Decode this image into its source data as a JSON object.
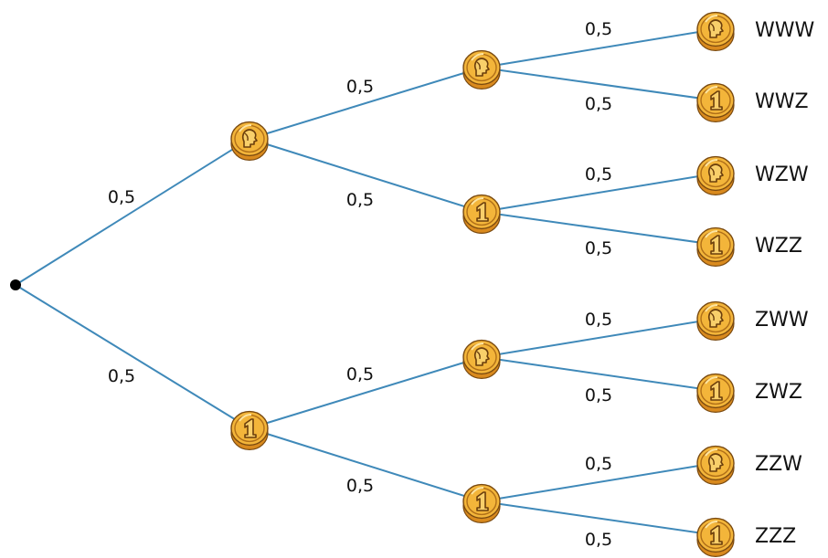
{
  "tree": {
    "levels": [
      {
        "branches": [
          {
            "coin": "heads-W",
            "prob": "0,5"
          },
          {
            "coin": "tails-Z",
            "prob": "0,5"
          }
        ]
      },
      {
        "branches": [
          {
            "coin": "heads-W",
            "prob": "0,5"
          },
          {
            "coin": "tails-Z",
            "prob": "0,5"
          },
          {
            "coin": "heads-W",
            "prob": "0,5"
          },
          {
            "coin": "tails-Z",
            "prob": "0,5"
          }
        ]
      },
      {
        "branches": [
          {
            "coin": "heads-W",
            "prob": "0,5",
            "outcome": "WWW"
          },
          {
            "coin": "tails-Z",
            "prob": "0,5",
            "outcome": "WWZ"
          },
          {
            "coin": "heads-W",
            "prob": "0,5",
            "outcome": "WZW"
          },
          {
            "coin": "tails-Z",
            "prob": "0,5",
            "outcome": "WZZ"
          },
          {
            "coin": "heads-W",
            "prob": "0,5",
            "outcome": "ZWW"
          },
          {
            "coin": "tails-Z",
            "prob": "0,5",
            "outcome": "ZWZ"
          },
          {
            "coin": "heads-W",
            "prob": "0,5",
            "outcome": "ZZW"
          },
          {
            "coin": "tails-Z",
            "prob": "0,5",
            "outcome": "ZZZ"
          }
        ]
      }
    ],
    "icons": {
      "heads": "coin-heads-icon",
      "tails": "coin-tails-icon"
    },
    "colors": {
      "edge": "#3f89b9",
      "coin": "#f3b53a",
      "root": "#000000"
    }
  }
}
